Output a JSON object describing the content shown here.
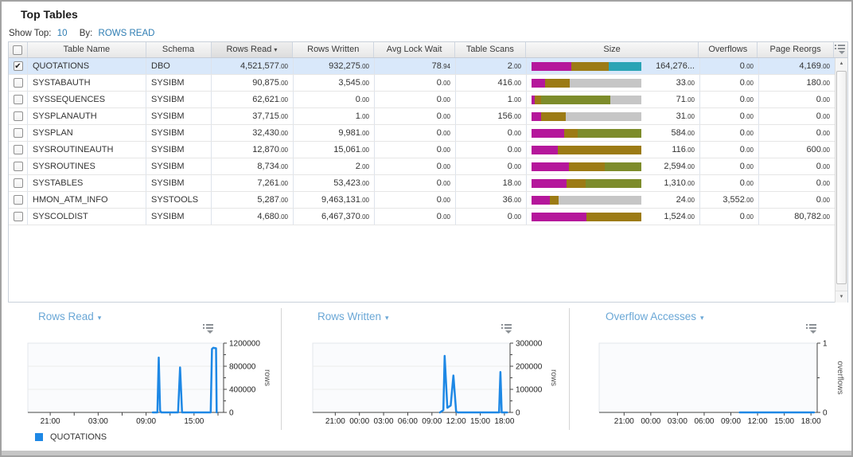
{
  "title": "Top Tables",
  "controls": {
    "show_top_label": "Show Top:",
    "show_top_value": "10",
    "by_label": "By:",
    "by_value": "ROWS READ"
  },
  "icons": {
    "sort_desc": "▾",
    "check": "✔",
    "dropdown": "▾",
    "scroll_up": "▲",
    "scroll_down": "▼"
  },
  "colors": {
    "magenta": "#b5179b",
    "gold": "#9c7b15",
    "teal": "#2aa4b5",
    "green": "#7d8c2b",
    "gray": "#c6c6c6",
    "series": "#1e88e5",
    "link": "#2e7db3",
    "title_blue": "#6aa7d6"
  },
  "table": {
    "headers": {
      "table_name": "Table Name",
      "schema": "Schema",
      "rows_read": "Rows Read",
      "rows_written": "Rows Written",
      "avg_lock_wait": "Avg Lock Wait",
      "table_scans": "Table Scans",
      "size": "Size",
      "overflows": "Overflows",
      "page_reorgs": "Page Reorgs"
    },
    "sorted_by": "rows_read",
    "rows": [
      {
        "checked": true,
        "selected": true,
        "table_name": "QUOTATIONS",
        "schema": "DBO",
        "rows_read": "4,521,577.00",
        "rows_written": "932,275.00",
        "avg_lock_wait": "78.94",
        "table_scans": "2.00",
        "size_value": "164,276...",
        "size_bar": [
          {
            "c": "magenta",
            "p": 36
          },
          {
            "c": "gold",
            "p": 34
          },
          {
            "c": "teal",
            "p": 30
          }
        ],
        "overflows": "0.00",
        "page_reorgs": "4,169.00"
      },
      {
        "checked": false,
        "selected": false,
        "table_name": "SYSTABAUTH",
        "schema": "SYSIBM",
        "rows_read": "90,875.00",
        "rows_written": "3,545.00",
        "avg_lock_wait": "0.00",
        "table_scans": "416.00",
        "size_value": "33.00",
        "size_bar": [
          {
            "c": "magenta",
            "p": 12
          },
          {
            "c": "gold",
            "p": 23
          },
          {
            "c": "gray",
            "p": 65
          }
        ],
        "overflows": "0.00",
        "page_reorgs": "180.00"
      },
      {
        "checked": false,
        "selected": false,
        "table_name": "SYSSEQUENCES",
        "schema": "SYSIBM",
        "rows_read": "62,621.00",
        "rows_written": "0.00",
        "avg_lock_wait": "0.00",
        "table_scans": "1.00",
        "size_value": "71.00",
        "size_bar": [
          {
            "c": "magenta",
            "p": 3
          },
          {
            "c": "gold",
            "p": 6
          },
          {
            "c": "green",
            "p": 63
          },
          {
            "c": "gray",
            "p": 28
          }
        ],
        "overflows": "0.00",
        "page_reorgs": "0.00"
      },
      {
        "checked": false,
        "selected": false,
        "table_name": "SYSPLANAUTH",
        "schema": "SYSIBM",
        "rows_read": "37,715.00",
        "rows_written": "1.00",
        "avg_lock_wait": "0.00",
        "table_scans": "156.00",
        "size_value": "31.00",
        "size_bar": [
          {
            "c": "magenta",
            "p": 9
          },
          {
            "c": "gold",
            "p": 22
          },
          {
            "c": "gray",
            "p": 69
          }
        ],
        "overflows": "0.00",
        "page_reorgs": "0.00"
      },
      {
        "checked": false,
        "selected": false,
        "table_name": "SYSPLAN",
        "schema": "SYSIBM",
        "rows_read": "32,430.00",
        "rows_written": "9,981.00",
        "avg_lock_wait": "0.00",
        "table_scans": "0.00",
        "size_value": "584.00",
        "size_bar": [
          {
            "c": "magenta",
            "p": 30
          },
          {
            "c": "gold",
            "p": 12
          },
          {
            "c": "green",
            "p": 58
          }
        ],
        "overflows": "0.00",
        "page_reorgs": "0.00"
      },
      {
        "checked": false,
        "selected": false,
        "table_name": "SYSROUTINEAUTH",
        "schema": "SYSIBM",
        "rows_read": "12,870.00",
        "rows_written": "15,061.00",
        "avg_lock_wait": "0.00",
        "table_scans": "0.00",
        "size_value": "116.00",
        "size_bar": [
          {
            "c": "magenta",
            "p": 24
          },
          {
            "c": "gold",
            "p": 76
          }
        ],
        "overflows": "0.00",
        "page_reorgs": "600.00"
      },
      {
        "checked": false,
        "selected": false,
        "table_name": "SYSROUTINES",
        "schema": "SYSIBM",
        "rows_read": "8,734.00",
        "rows_written": "2.00",
        "avg_lock_wait": "0.00",
        "table_scans": "0.00",
        "size_value": "2,594.00",
        "size_bar": [
          {
            "c": "magenta",
            "p": 34
          },
          {
            "c": "gold",
            "p": 33
          },
          {
            "c": "green",
            "p": 33
          }
        ],
        "overflows": "0.00",
        "page_reorgs": "0.00"
      },
      {
        "checked": false,
        "selected": false,
        "table_name": "SYSTABLES",
        "schema": "SYSIBM",
        "rows_read": "7,261.00",
        "rows_written": "53,423.00",
        "avg_lock_wait": "0.00",
        "table_scans": "18.00",
        "size_value": "1,310.00",
        "size_bar": [
          {
            "c": "magenta",
            "p": 32
          },
          {
            "c": "gold",
            "p": 17
          },
          {
            "c": "green",
            "p": 51
          }
        ],
        "overflows": "0.00",
        "page_reorgs": "0.00"
      },
      {
        "checked": false,
        "selected": false,
        "table_name": "HMON_ATM_INFO",
        "schema": "SYSTOOLS",
        "rows_read": "5,287.00",
        "rows_written": "9,463,131.00",
        "avg_lock_wait": "0.00",
        "table_scans": "36.00",
        "size_value": "24.00",
        "size_bar": [
          {
            "c": "magenta",
            "p": 17
          },
          {
            "c": "gold",
            "p": 8
          },
          {
            "c": "gray",
            "p": 75
          }
        ],
        "overflows": "3,552.00",
        "page_reorgs": "0.00"
      },
      {
        "checked": false,
        "selected": false,
        "table_name": "SYSCOLDIST",
        "schema": "SYSIBM",
        "rows_read": "4,680.00",
        "rows_written": "6,467,370.00",
        "avg_lock_wait": "0.00",
        "table_scans": "0.00",
        "size_value": "1,524.00",
        "size_bar": [
          {
            "c": "magenta",
            "p": 50
          },
          {
            "c": "gold",
            "p": 50
          }
        ],
        "overflows": "0.00",
        "page_reorgs": "80,782.00"
      }
    ]
  },
  "chart_data": [
    {
      "type": "line",
      "title": "Rows Read",
      "ylabel": "rows",
      "ymax": 1200000,
      "ylim": [
        0,
        1200000
      ],
      "yticks": [
        {
          "v": 0,
          "label": "0"
        },
        {
          "v": 400000,
          "label": "400000"
        },
        {
          "v": 800000,
          "label": "800000"
        },
        {
          "v": 1200000,
          "label": "1200000"
        }
      ],
      "yminor": [
        200000,
        600000,
        1000000
      ],
      "xdomain": [
        18.2,
        42.7
      ],
      "xticks": [
        {
          "t": "21:00",
          "label": "21:00"
        },
        {
          "t": "00:00",
          "label": ""
        },
        {
          "t": "03:00",
          "label": "03:00"
        },
        {
          "t": "06:00",
          "label": ""
        },
        {
          "t": "09:00",
          "label": "09:00"
        },
        {
          "t": "12:00",
          "label": ""
        },
        {
          "t": "15:00",
          "label": "15:00"
        },
        {
          "t": "18:00",
          "label": ""
        }
      ],
      "series": [
        {
          "name": "QUOTATIONS",
          "points": [
            [
              "09:50",
              0
            ],
            [
              "10:25",
              0
            ],
            [
              "10:35",
              950000
            ],
            [
              "10:45",
              30000
            ],
            [
              "10:55",
              0
            ],
            [
              "13:00",
              0
            ],
            [
              "13:15",
              780000
            ],
            [
              "13:30",
              0
            ],
            [
              "17:05",
              0
            ],
            [
              "17:15",
              1100000
            ],
            [
              "17:25",
              1120000
            ],
            [
              "17:45",
              1110000
            ],
            [
              "17:50",
              0
            ]
          ]
        }
      ],
      "legend": [
        "QUOTATIONS"
      ]
    },
    {
      "type": "line",
      "title": "Rows Written",
      "ylabel": "rows",
      "ymax": 300000,
      "ylim": [
        0,
        300000
      ],
      "yticks": [
        {
          "v": 0,
          "label": "0"
        },
        {
          "v": 100000,
          "label": "100000"
        },
        {
          "v": 200000,
          "label": "200000"
        },
        {
          "v": 300000,
          "label": "300000"
        }
      ],
      "yminor": [
        50000,
        150000,
        250000
      ],
      "xdomain": [
        18.2,
        42.7
      ],
      "xticks": [
        {
          "t": "21:00",
          "label": "21:00"
        },
        {
          "t": "00:00",
          "label": "00:00"
        },
        {
          "t": "03:00",
          "label": "03:00"
        },
        {
          "t": "06:00",
          "label": "06:00"
        },
        {
          "t": "09:00",
          "label": "09:00"
        },
        {
          "t": "12:00",
          "label": "12:00"
        },
        {
          "t": "15:00",
          "label": "15:00"
        },
        {
          "t": "18:00",
          "label": "18:00"
        }
      ],
      "series": [
        {
          "name": "QUOTATIONS",
          "points": [
            [
              "10:00",
              0
            ],
            [
              "10:25",
              10000
            ],
            [
              "10:35",
              245000
            ],
            [
              "10:55",
              20000
            ],
            [
              "11:20",
              30000
            ],
            [
              "11:40",
              160000
            ],
            [
              "12:00",
              5000
            ],
            [
              "12:10",
              0
            ],
            [
              "17:20",
              0
            ],
            [
              "17:30",
              175000
            ],
            [
              "17:40",
              0
            ],
            [
              "18:20",
              0
            ]
          ]
        }
      ]
    },
    {
      "type": "line",
      "title": "Overflow Accesses",
      "ylabel": "overflows",
      "ymax": 1,
      "ylim": [
        0,
        1
      ],
      "yticks": [
        {
          "v": 0,
          "label": "0"
        },
        {
          "v": 1,
          "label": "1"
        }
      ],
      "yminor": [
        0.5
      ],
      "xdomain": [
        18.2,
        42.7
      ],
      "xticks": [
        {
          "t": "21:00",
          "label": "21:00"
        },
        {
          "t": "00:00",
          "label": "00:00"
        },
        {
          "t": "03:00",
          "label": "03:00"
        },
        {
          "t": "06:00",
          "label": "06:00"
        },
        {
          "t": "09:00",
          "label": "09:00"
        },
        {
          "t": "12:00",
          "label": "12:00"
        },
        {
          "t": "15:00",
          "label": "15:00"
        },
        {
          "t": "18:00",
          "label": "18:00"
        }
      ],
      "series": [
        {
          "name": "QUOTATIONS",
          "points": [
            [
              "10:00",
              0
            ],
            [
              "18:20",
              0
            ]
          ]
        }
      ]
    }
  ]
}
